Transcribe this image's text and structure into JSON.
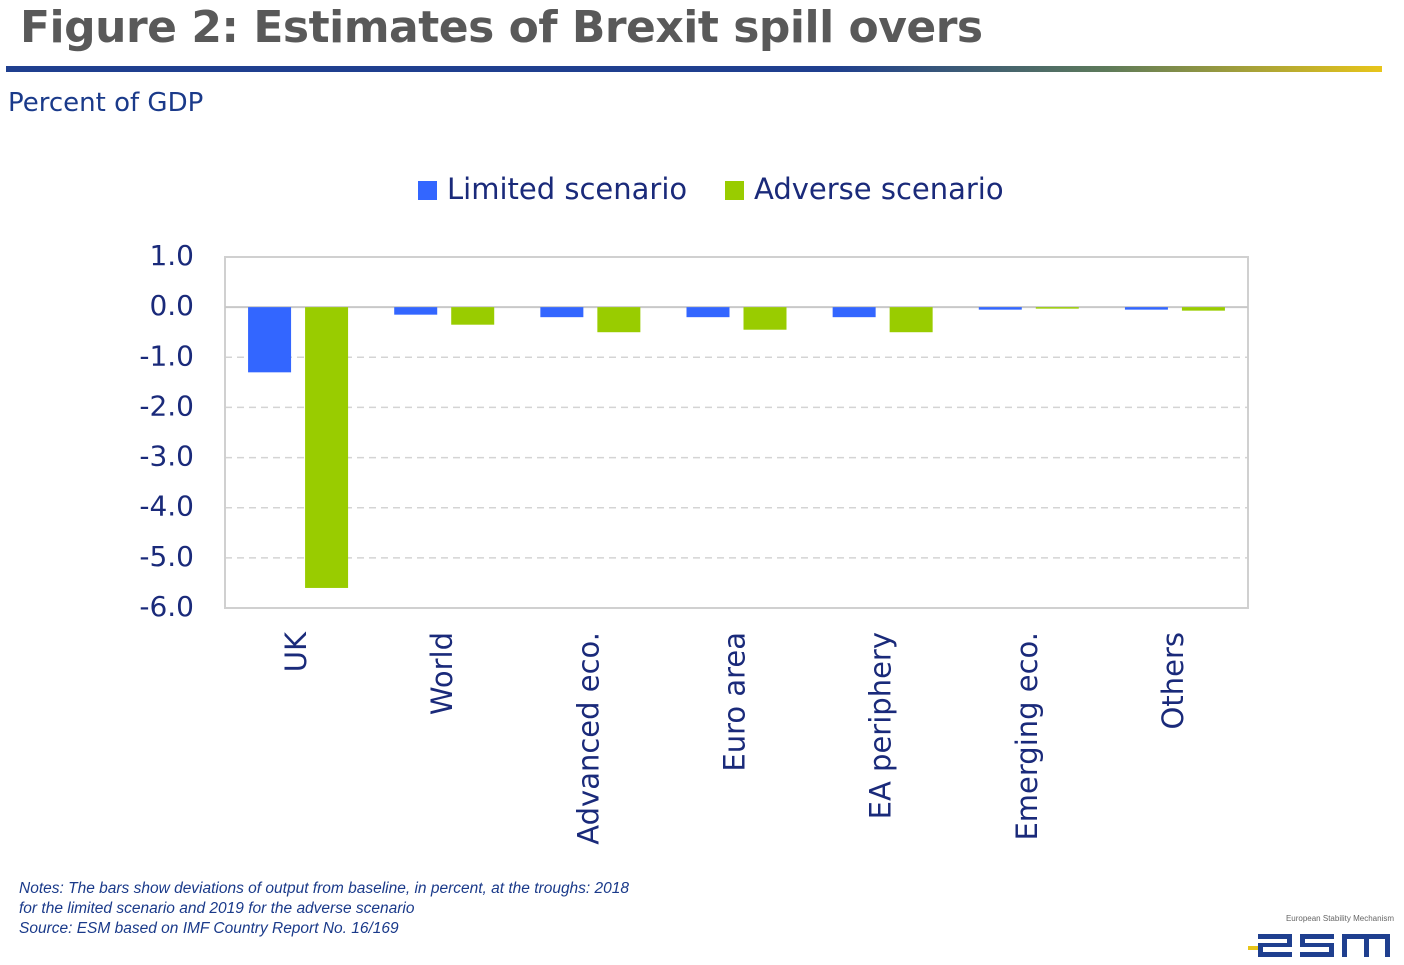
{
  "header": {
    "title": "Figure 2: Estimates of Brexit spill overs",
    "subtitle": "Percent of GDP"
  },
  "chart_data": {
    "type": "bar",
    "categories": [
      "UK",
      "World",
      "Advanced eco.",
      "Euro area",
      "EA periphery",
      "Emerging eco.",
      "Others"
    ],
    "series": [
      {
        "name": "Limited scenario",
        "color": "#3366ff",
        "values": [
          -1.3,
          -0.15,
          -0.2,
          -0.2,
          -0.2,
          -0.05,
          -0.05
        ]
      },
      {
        "name": "Adverse scenario",
        "color": "#99cc00",
        "values": [
          -5.6,
          -0.35,
          -0.5,
          -0.45,
          -0.5,
          -0.02,
          -0.07
        ]
      }
    ],
    "ylim": [
      -6.0,
      1.0
    ],
    "yticks": [
      1.0,
      0.0,
      -1.0,
      -2.0,
      -3.0,
      -4.0,
      -5.0,
      -6.0
    ],
    "ytick_labels": [
      "1.0",
      "0.0",
      "-1.0",
      "-2.0",
      "-3.0",
      "-4.0",
      "-5.0",
      "-6.0"
    ],
    "grid": "dashed horizontal",
    "legend_position": "top"
  },
  "notes": {
    "line1": "Notes: The bars show deviations of output from baseline, in percent, at the troughs: 2018",
    "line2": "for the limited scenario and 2019 for the adverse scenario",
    "line3": "Source: ESM based on IMF Country Report No. 16/169"
  },
  "logo": {
    "caption": "European Stability Mechanism",
    "wordmark": "esm"
  }
}
